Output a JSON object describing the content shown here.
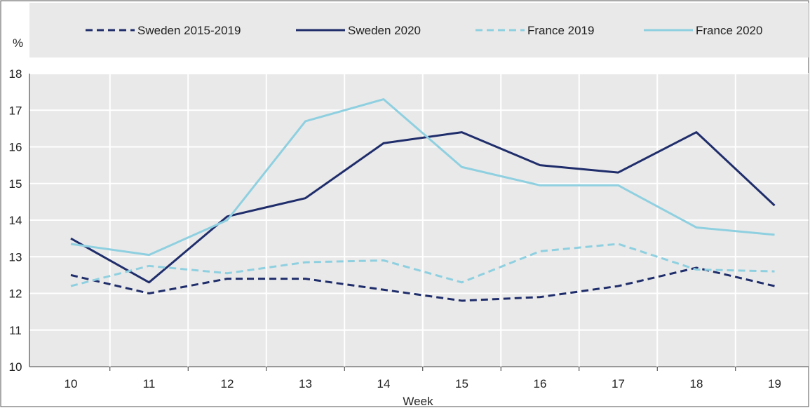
{
  "chart_data": {
    "type": "line",
    "title": "",
    "xlabel": "Week",
    "ylabel": "%",
    "x": [
      10,
      11,
      12,
      13,
      14,
      15,
      16,
      17,
      18,
      19
    ],
    "ylim": [
      10,
      18
    ],
    "yticks": [
      10,
      11,
      12,
      13,
      14,
      15,
      16,
      17,
      18
    ],
    "grid": true,
    "legend_position": "top",
    "series": [
      {
        "name": "Sweden 2015-2019",
        "color": "#1f2d6b",
        "dash": true,
        "values": [
          12.5,
          12.0,
          12.4,
          12.4,
          12.1,
          11.8,
          11.9,
          12.2,
          12.7,
          12.2
        ]
      },
      {
        "name": "Sweden 2020",
        "color": "#1f2d6b",
        "dash": false,
        "values": [
          13.5,
          12.3,
          14.1,
          14.6,
          16.1,
          16.4,
          15.5,
          15.3,
          16.4,
          14.4
        ]
      },
      {
        "name": "France 2019",
        "color": "#8fd0e0",
        "dash": true,
        "values": [
          12.2,
          12.75,
          12.55,
          12.85,
          12.9,
          12.3,
          13.15,
          13.35,
          12.65,
          12.6
        ]
      },
      {
        "name": "France 2020",
        "color": "#8fd0e0",
        "dash": false,
        "values": [
          13.35,
          13.05,
          14.0,
          16.7,
          17.3,
          15.45,
          14.95,
          14.95,
          13.8,
          13.6
        ]
      }
    ]
  }
}
